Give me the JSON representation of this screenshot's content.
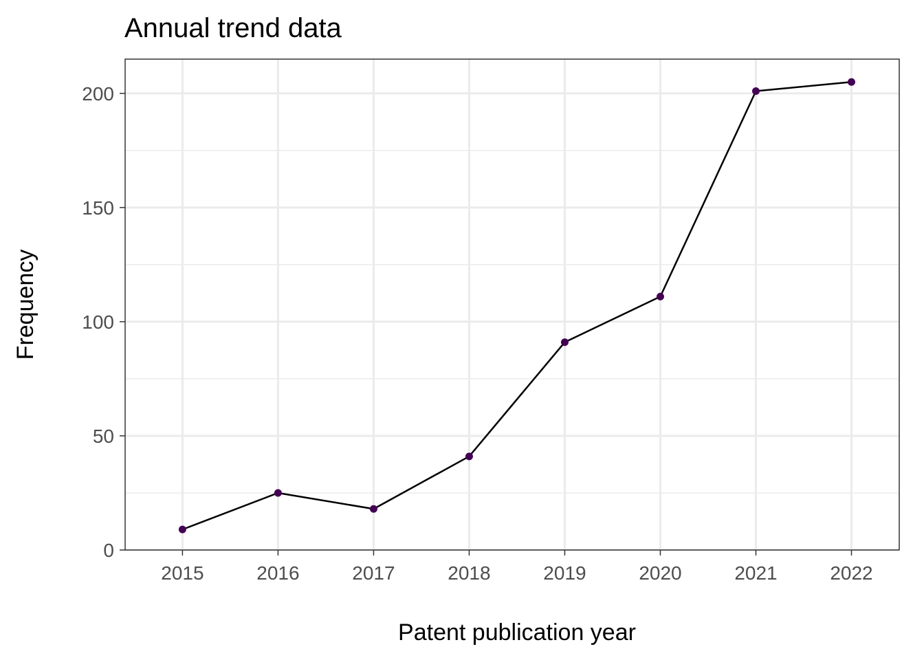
{
  "chart_data": {
    "type": "line",
    "title": "Annual trend data",
    "xlabel": "Patent publication year",
    "ylabel": "Frequency",
    "x": [
      2015,
      2016,
      2017,
      2018,
      2019,
      2020,
      2021,
      2022
    ],
    "x_tick_labels": [
      "2015",
      "2016",
      "2017",
      "2018",
      "2019",
      "2020",
      "2021",
      "2022"
    ],
    "series": [
      {
        "values": [
          9,
          25,
          18,
          41,
          91,
          111,
          201,
          205
        ]
      }
    ],
    "xlim": [
      2014.4,
      2022.5
    ],
    "ylim": [
      0,
      215
    ],
    "y_ticks": [
      0,
      50,
      100,
      150,
      200
    ],
    "y_tick_labels": [
      "0",
      "50",
      "100",
      "150",
      "200"
    ],
    "y_minor_ticks": [
      25,
      75,
      125,
      175
    ],
    "grid": true,
    "legend": "none",
    "colors": {
      "line": "#000000",
      "point": "#440154",
      "grid": "#ebebeb",
      "panel_border": "#333333",
      "tick_label": "#4d4d4d"
    }
  }
}
